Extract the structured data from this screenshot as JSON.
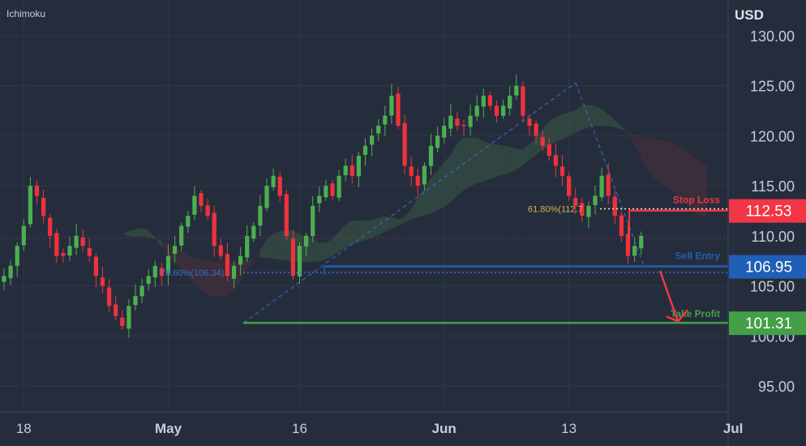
{
  "indicator_label": "Ichimoku",
  "currency_label": "USD",
  "colors": {
    "background": "#252d3d",
    "grid": "#2e3749",
    "up_candle": "#4caf50",
    "down_candle": "#f0323c",
    "stop_loss": "#f23645",
    "sell_entry": "#1f5fb5",
    "take_profit": "#43a047",
    "fib_dotted": "#f5e6c8",
    "fib_label": "#d6b34a",
    "retrace_line": "#3a6fcf",
    "cloud_green": "#3b5a45",
    "cloud_red": "#4a3038",
    "axis_text": "#c8ccd6"
  },
  "chart_data": {
    "type": "candlestick",
    "ylim": [
      96.5,
      132.8
    ],
    "y_ticks": [
      "95.00",
      "100.00",
      "105.00",
      "110.00",
      "115.00",
      "120.00",
      "125.00",
      "130.00"
    ],
    "y_tick_values": [
      95,
      100,
      105,
      110,
      115,
      120,
      125,
      130
    ],
    "x_ticks": [
      {
        "label": "18",
        "bar": 3,
        "bold": false
      },
      {
        "label": "May",
        "bar": 25,
        "bold": true
      },
      {
        "label": "16",
        "bar": 45,
        "bold": false
      },
      {
        "label": "Jun",
        "bar": 67,
        "bold": true
      },
      {
        "label": "13",
        "bar": 86,
        "bold": false
      },
      {
        "label": "Jul",
        "bar": 111,
        "bold": true
      }
    ],
    "last_price": 109.75,
    "closes": [
      106,
      107,
      109,
      111,
      115,
      114,
      112,
      110,
      108,
      108,
      109,
      110,
      109,
      108,
      106,
      105,
      103,
      102,
      101,
      103,
      104,
      105,
      106,
      107,
      106,
      108,
      109,
      111,
      112,
      114,
      113,
      112,
      109,
      108,
      106,
      107,
      108,
      110,
      111,
      113,
      115,
      116,
      114,
      110,
      106,
      109,
      110,
      113,
      114,
      115,
      114,
      116,
      117,
      116,
      118,
      119,
      120,
      121,
      122,
      124,
      121,
      117,
      116,
      115,
      117,
      119,
      120,
      121,
      122,
      121,
      121,
      122,
      123,
      124,
      123,
      122,
      123,
      124,
      125,
      122,
      121,
      120,
      119,
      118,
      117,
      116,
      114,
      113,
      112,
      113,
      114,
      116,
      114,
      112,
      110,
      108,
      109,
      110
    ],
    "levels": [
      {
        "name": "Stop Loss",
        "value": 112.53,
        "badge": "112.53"
      },
      {
        "name": "Sell Entry",
        "value": 106.95,
        "badge": "106.95"
      },
      {
        "name": "Take Profit",
        "value": 101.31,
        "badge": "101.31"
      }
    ],
    "fib_levels": [
      {
        "label": "61.80%(112.7",
        "value": 112.7
      },
      {
        "label": "78.60%(106.34)",
        "value": 106.34
      }
    ],
    "retracement_swing": {
      "low": 101.3,
      "high": 125.3
    },
    "projection_arrow": {
      "from": 106.5,
      "to": 101.3
    }
  }
}
